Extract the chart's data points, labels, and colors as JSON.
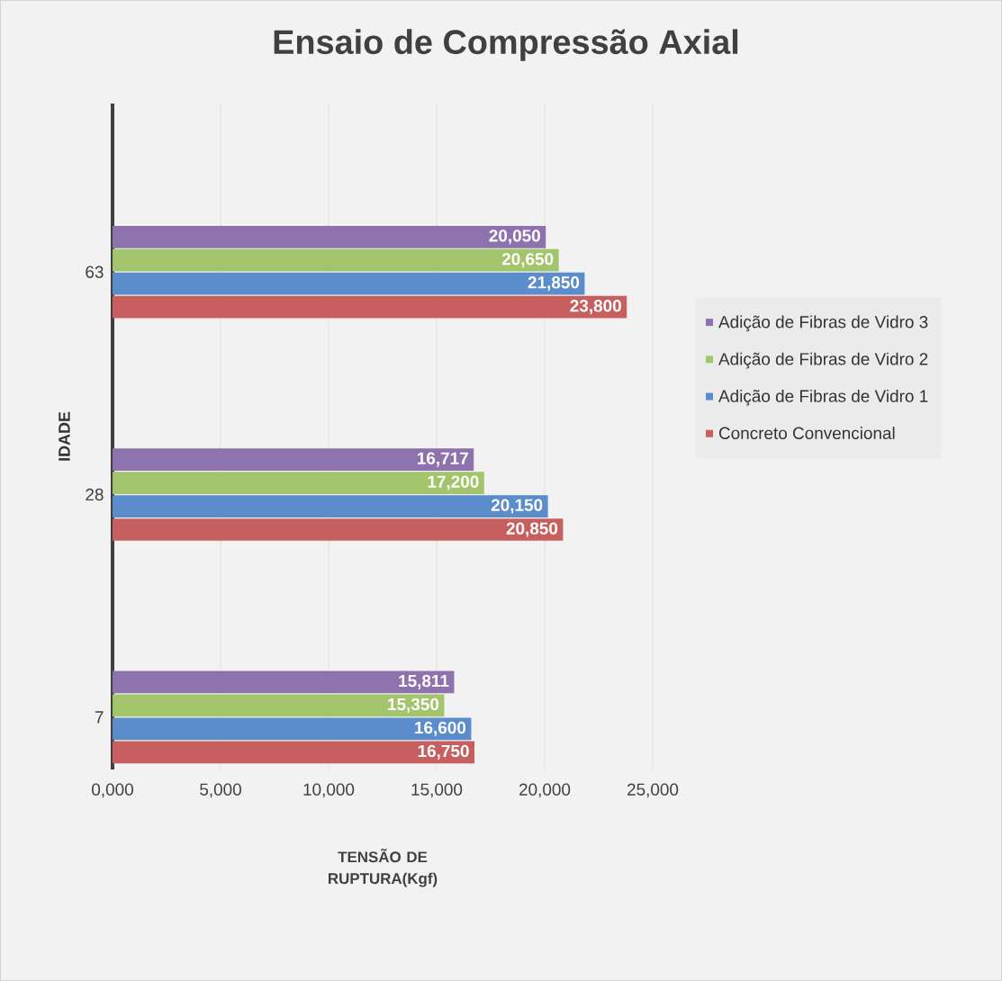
{
  "chart_data": {
    "type": "bar",
    "orientation": "horizontal",
    "title": "Ensaio de Compressão Axial",
    "xlabel": "TENSÃO DE RUPTURA(Kgf)",
    "ylabel": "IDADE",
    "categories": [
      "63",
      "28",
      "7"
    ],
    "series": [
      {
        "name": "Adição de Fibras de Vidro 3",
        "color": "#8e72ad",
        "values": [
          20050,
          16717,
          15811
        ],
        "value_labels": [
          "20,050",
          "16,717",
          "15,811"
        ]
      },
      {
        "name": "Adição de Fibras de Vidro 2",
        "color": "#a2c46a",
        "values": [
          20650,
          17200,
          15350
        ],
        "value_labels": [
          "20,650",
          "17,200",
          "15,350"
        ]
      },
      {
        "name": "Adição de Fibras de Vidro 1",
        "color": "#5b8ccc",
        "values": [
          21850,
          20150,
          16600
        ],
        "value_labels": [
          "21,850",
          "20,150",
          "16,600"
        ]
      },
      {
        "name": "Concreto Convencional",
        "color": "#c85f5f",
        "values": [
          23800,
          20850,
          16750
        ],
        "value_labels": [
          "23,800",
          "20,850",
          "16,750"
        ]
      }
    ],
    "xlim": [
      0,
      25000
    ],
    "xticks": [
      {
        "value": 0,
        "label": "0,000"
      },
      {
        "value": 5000,
        "label": "5,000"
      },
      {
        "value": 10000,
        "label": "10,000"
      },
      {
        "value": 15000,
        "label": "15,000"
      },
      {
        "value": 20000,
        "label": "20,000"
      },
      {
        "value": 25000,
        "label": "25,000"
      }
    ],
    "grid": "x",
    "legend": "right"
  }
}
